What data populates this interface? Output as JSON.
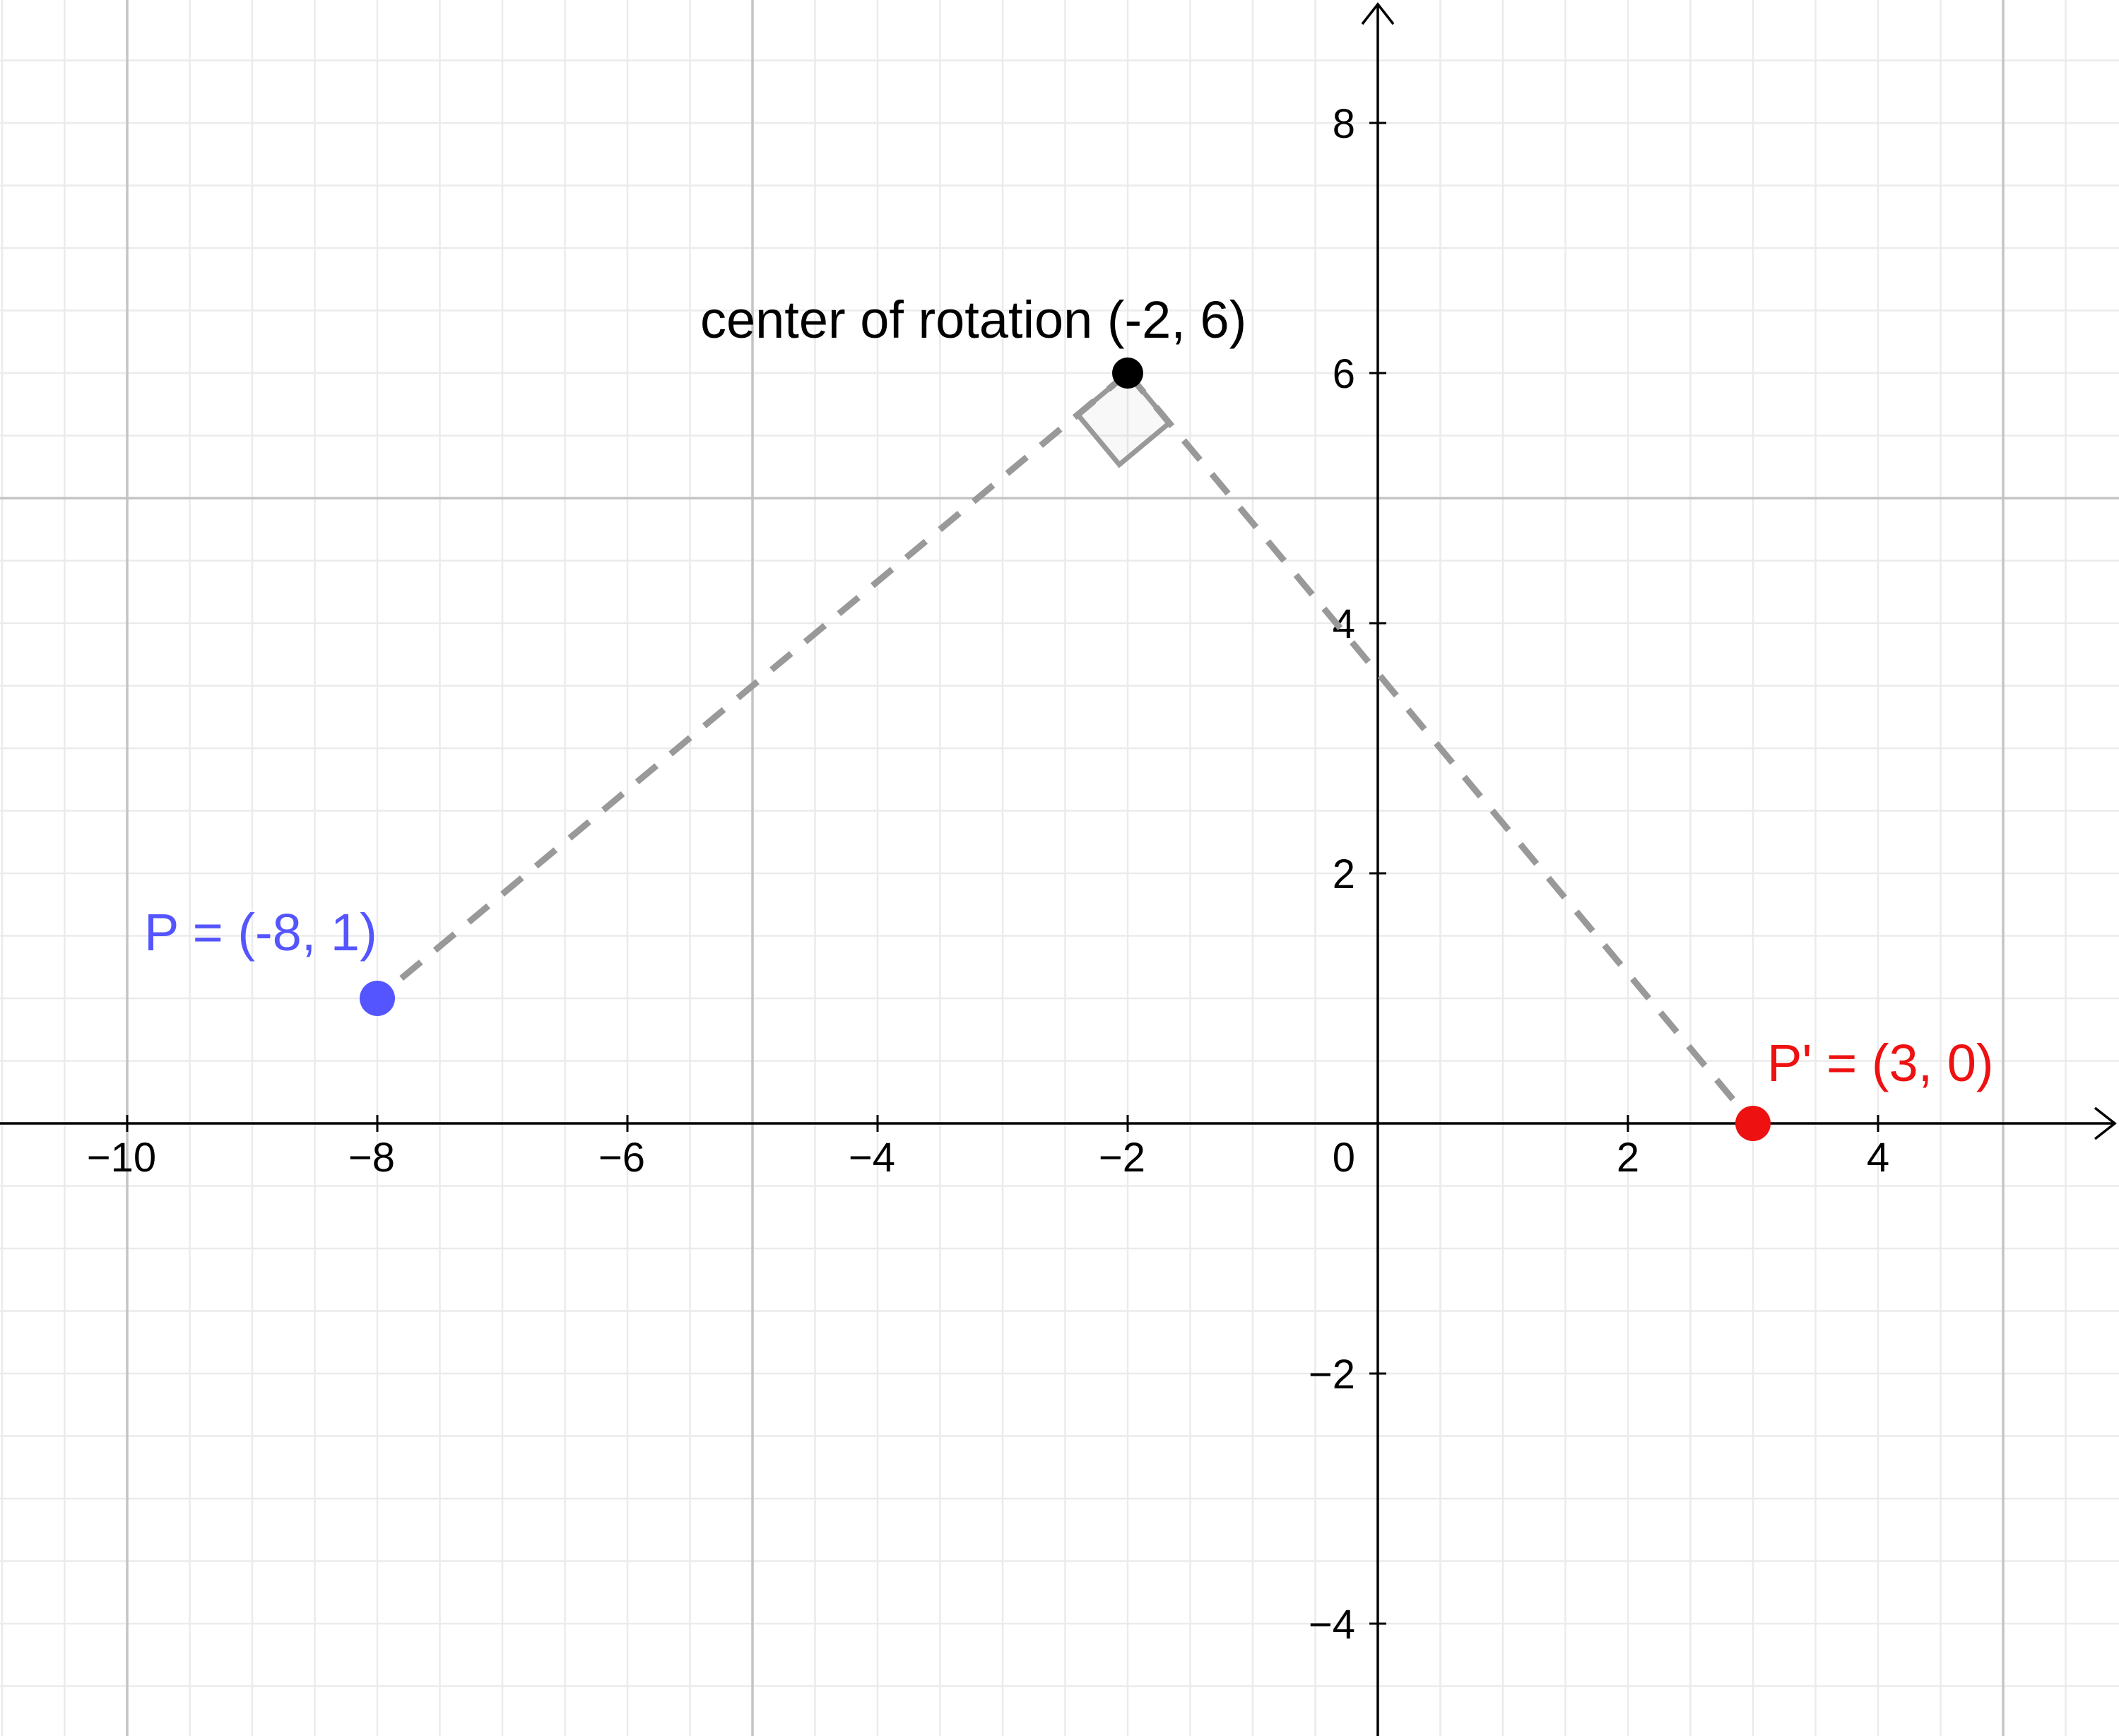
{
  "chart_data": {
    "type": "scatter",
    "xlim": [
      -11,
      6
    ],
    "ylim": [
      -5,
      9
    ],
    "grid": true,
    "x_ticks": [
      {
        "value": -10,
        "label": "−10"
      },
      {
        "value": -8,
        "label": "−8"
      },
      {
        "value": -6,
        "label": "−6"
      },
      {
        "value": -4,
        "label": "−4"
      },
      {
        "value": -2,
        "label": "−2"
      },
      {
        "value": 2,
        "label": "2"
      },
      {
        "value": 4,
        "label": "4"
      }
    ],
    "y_ticks": [
      {
        "value": 8,
        "label": "8"
      },
      {
        "value": 6,
        "label": "6"
      },
      {
        "value": 4,
        "label": "4"
      },
      {
        "value": 2,
        "label": "2"
      },
      {
        "value": -2,
        "label": "−2"
      },
      {
        "value": -4,
        "label": "−4"
      }
    ],
    "origin_label": "0",
    "points": [
      {
        "id": "p",
        "x": -8,
        "y": 1,
        "label": "P = (-8, 1)",
        "color": "#5555ff"
      },
      {
        "id": "center",
        "x": -2,
        "y": 6,
        "label": "center of rotation (-2, 6)",
        "color": "#000000"
      },
      {
        "id": "p-prime",
        "x": 3,
        "y": 0,
        "label": "P' = (3, 0)",
        "color": "#ee1111"
      }
    ],
    "segments": [
      {
        "from": "center",
        "to": "p",
        "style": "dashed",
        "color": "#999999"
      },
      {
        "from": "center",
        "to": "p-prime",
        "style": "dashed",
        "color": "#999999"
      }
    ],
    "right_angle_at": "center"
  }
}
